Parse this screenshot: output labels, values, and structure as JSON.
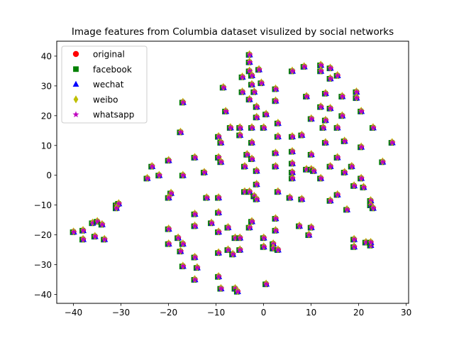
{
  "chart_data": {
    "type": "scatter",
    "title": "Image features from Columbia dataset visulized by social networks",
    "xlabel": "",
    "ylabel": "",
    "xlim": [
      -43.5,
      30.5
    ],
    "ylim": [
      -43,
      45
    ],
    "xticks": [
      -40,
      -30,
      -20,
      -10,
      0,
      10,
      20,
      30
    ],
    "yticks": [
      -40,
      -30,
      -20,
      -10,
      0,
      10,
      20,
      30,
      40
    ],
    "grid": false,
    "legend_position": "top-left",
    "series": [
      {
        "name": "original",
        "marker": "circle",
        "color": "#ff0000"
      },
      {
        "name": "facebook",
        "marker": "square",
        "color": "#008000"
      },
      {
        "name": "wechat",
        "marker": "triangle",
        "color": "#0000ff"
      },
      {
        "name": "weibo",
        "marker": "diamond",
        "color": "#bfbf00"
      },
      {
        "name": "whatsapp",
        "marker": "star",
        "color": "#bf00bf"
      }
    ],
    "points": [
      [
        -40,
        -19
      ],
      [
        -38,
        -18.5
      ],
      [
        -38,
        -21.5
      ],
      [
        -36,
        -16
      ],
      [
        -35,
        -15.5
      ],
      [
        -34,
        -16.5
      ],
      [
        -35.5,
        -20.5
      ],
      [
        -33.5,
        -21.5
      ],
      [
        -31,
        -10
      ],
      [
        -30.5,
        -9.5
      ],
      [
        -31,
        -11
      ],
      [
        -24.5,
        -1
      ],
      [
        -23.5,
        3
      ],
      [
        -22,
        0
      ],
      [
        -20,
        5
      ],
      [
        -19.5,
        -6
      ],
      [
        -20,
        -7.5
      ],
      [
        -20,
        -18
      ],
      [
        -20,
        -23
      ],
      [
        -18,
        -21
      ],
      [
        -17.5,
        -25.5
      ],
      [
        -17,
        -23
      ],
      [
        -17,
        -30.5
      ],
      [
        -17.5,
        14.5
      ],
      [
        -17,
        24.5
      ],
      [
        -17,
        0
      ],
      [
        -14.5,
        -13
      ],
      [
        -14.5,
        -17
      ],
      [
        -14.5,
        -27.5
      ],
      [
        -14,
        -31
      ],
      [
        -14.5,
        -35
      ],
      [
        -14.5,
        6
      ],
      [
        -12.5,
        1
      ],
      [
        -12,
        -7.5
      ],
      [
        -11,
        -16
      ],
      [
        -9.5,
        -12.5
      ],
      [
        -9.5,
        -19
      ],
      [
        -9.5,
        -26
      ],
      [
        -9.5,
        -34
      ],
      [
        -9,
        -38
      ],
      [
        -9.5,
        -7.5
      ],
      [
        -9.5,
        13
      ],
      [
        -9,
        11
      ],
      [
        -8.5,
        29.5
      ],
      [
        -9.5,
        6
      ],
      [
        -9,
        4.5
      ],
      [
        -8,
        21.5
      ],
      [
        -7,
        16
      ],
      [
        -7.5,
        -17.5
      ],
      [
        -7.5,
        -25
      ],
      [
        -6.5,
        -26.5
      ],
      [
        -6,
        -21
      ],
      [
        -6,
        -38
      ],
      [
        -5.5,
        -39
      ],
      [
        -5,
        -25
      ],
      [
        -5,
        -21
      ],
      [
        -5,
        13.5
      ],
      [
        -5,
        16
      ],
      [
        -4.5,
        28
      ],
      [
        -4.5,
        33
      ],
      [
        -4,
        3
      ],
      [
        -3.5,
        7
      ],
      [
        -4,
        -5.5
      ],
      [
        -3,
        -5.5
      ],
      [
        -3,
        -17.5
      ],
      [
        -2.5,
        -15.5
      ],
      [
        -3,
        25.5
      ],
      [
        -3,
        35
      ],
      [
        -3,
        40.5
      ],
      [
        -3,
        38
      ],
      [
        -2.5,
        33.5
      ],
      [
        -2.5,
        30.5
      ],
      [
        -2,
        28
      ],
      [
        -2.5,
        16
      ],
      [
        -2.5,
        11
      ],
      [
        -2.5,
        5.5
      ],
      [
        -2,
        -7
      ],
      [
        -1.5,
        -8
      ],
      [
        -1.5,
        1.5
      ],
      [
        -1.5,
        -3
      ],
      [
        -1.5,
        19.5
      ],
      [
        -1.5,
        23
      ],
      [
        -1,
        35.5
      ],
      [
        -0.5,
        31
      ],
      [
        0,
        16
      ],
      [
        0,
        -21
      ],
      [
        0,
        -24
      ],
      [
        0.5,
        20.5
      ],
      [
        0.5,
        -36.5
      ],
      [
        2,
        -23
      ],
      [
        2,
        -24.5
      ],
      [
        2.5,
        29
      ],
      [
        2.5,
        25
      ],
      [
        2.5,
        7.5
      ],
      [
        2.5,
        3
      ],
      [
        2.5,
        -14.5
      ],
      [
        2.5,
        -18.5
      ],
      [
        3,
        -25
      ],
      [
        3,
        -5.5
      ],
      [
        3,
        13
      ],
      [
        3,
        17.5
      ],
      [
        5.5,
        -7.5
      ],
      [
        6,
        -1
      ],
      [
        6,
        1
      ],
      [
        6,
        4
      ],
      [
        6,
        8
      ],
      [
        6,
        35
      ],
      [
        6,
        13
      ],
      [
        7.5,
        -17
      ],
      [
        8,
        13.5
      ],
      [
        8,
        -8
      ],
      [
        8.5,
        36.5
      ],
      [
        9,
        26.5
      ],
      [
        9,
        2
      ],
      [
        9.5,
        -20
      ],
      [
        10,
        7
      ],
      [
        10,
        19
      ],
      [
        10,
        -17.5
      ],
      [
        10,
        2
      ],
      [
        10.5,
        1.5
      ],
      [
        12,
        37
      ],
      [
        12,
        35
      ],
      [
        12,
        23
      ],
      [
        12,
        -1
      ],
      [
        12.5,
        16
      ],
      [
        13,
        18.5
      ],
      [
        13,
        27.5
      ],
      [
        13,
        11
      ],
      [
        14,
        32.5
      ],
      [
        14,
        36
      ],
      [
        14,
        22.5
      ],
      [
        14,
        3
      ],
      [
        14,
        -8.5
      ],
      [
        15.5,
        33.5
      ],
      [
        15.5,
        16
      ],
      [
        15.5,
        6
      ],
      [
        15.5,
        -6.5
      ],
      [
        16.5,
        26.5
      ],
      [
        16.5,
        20
      ],
      [
        17,
        11.5
      ],
      [
        17,
        1
      ],
      [
        17.5,
        -11.5
      ],
      [
        18.5,
        3
      ],
      [
        19,
        -3.5
      ],
      [
        19,
        -21.5
      ],
      [
        19,
        -24
      ],
      [
        19.5,
        28
      ],
      [
        19.5,
        26
      ],
      [
        20.5,
        21.5
      ],
      [
        20.5,
        9.5
      ],
      [
        20.5,
        -1
      ],
      [
        21,
        -4
      ],
      [
        21.5,
        -22.5
      ],
      [
        22.5,
        -23.5
      ],
      [
        22.5,
        -22.5
      ],
      [
        23,
        16
      ],
      [
        22.5,
        -8.5
      ],
      [
        22.5,
        -10
      ],
      [
        23,
        -11
      ],
      [
        25,
        4.5
      ],
      [
        27,
        11
      ]
    ]
  },
  "legend": {
    "items": [
      {
        "label": "original"
      },
      {
        "label": "facebook"
      },
      {
        "label": "wechat"
      },
      {
        "label": "weibo"
      },
      {
        "label": "whatsapp"
      }
    ]
  }
}
